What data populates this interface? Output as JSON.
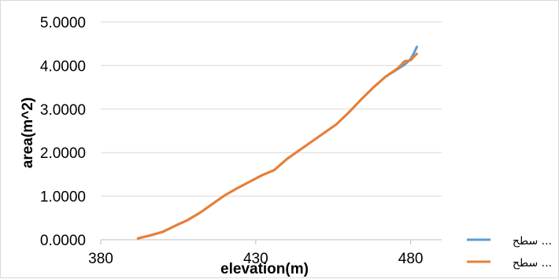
{
  "chart_data": {
    "type": "line",
    "xlabel": "elevation(m)",
    "ylabel": "area(m^2)",
    "xlim": [
      380,
      490
    ],
    "ylim": [
      0,
      5
    ],
    "x_ticks": [
      380,
      430,
      480
    ],
    "x_tick_labels": [
      "380",
      "430",
      "480"
    ],
    "y_ticks": [
      0,
      1,
      2,
      3,
      4,
      5
    ],
    "y_tick_labels": [
      "0.0000",
      "1.0000",
      "2.0000",
      "3.0000",
      "4.0000",
      "5.0000"
    ],
    "grid": "horizontal",
    "legend_position": "bottom-right",
    "series": [
      {
        "name": "سطح ...",
        "color": "#5b9bd5",
        "x": [
          392,
          396,
          400,
          404,
          408,
          412,
          416,
          420,
          424,
          428,
          432,
          436,
          440,
          444,
          448,
          452,
          456,
          460,
          464,
          468,
          472,
          476,
          478,
          480,
          481,
          482
        ],
        "y": [
          0.03,
          0.1,
          0.18,
          0.32,
          0.45,
          0.62,
          0.82,
          1.02,
          1.18,
          1.33,
          1.48,
          1.6,
          1.85,
          2.05,
          2.25,
          2.45,
          2.65,
          2.92,
          3.22,
          3.5,
          3.75,
          3.93,
          4.02,
          4.15,
          4.28,
          4.43
        ]
      },
      {
        "name": "سطح ...",
        "color": "#ed7d31",
        "x": [
          392,
          396,
          400,
          404,
          408,
          412,
          416,
          420,
          424,
          428,
          432,
          436,
          440,
          444,
          448,
          452,
          456,
          460,
          464,
          468,
          472,
          476,
          478,
          480,
          481,
          482
        ],
        "y": [
          0.03,
          0.1,
          0.18,
          0.32,
          0.45,
          0.62,
          0.82,
          1.02,
          1.18,
          1.33,
          1.48,
          1.6,
          1.85,
          2.05,
          2.25,
          2.45,
          2.65,
          2.92,
          3.22,
          3.5,
          3.75,
          3.95,
          4.1,
          4.12,
          4.2,
          4.27
        ]
      }
    ]
  }
}
